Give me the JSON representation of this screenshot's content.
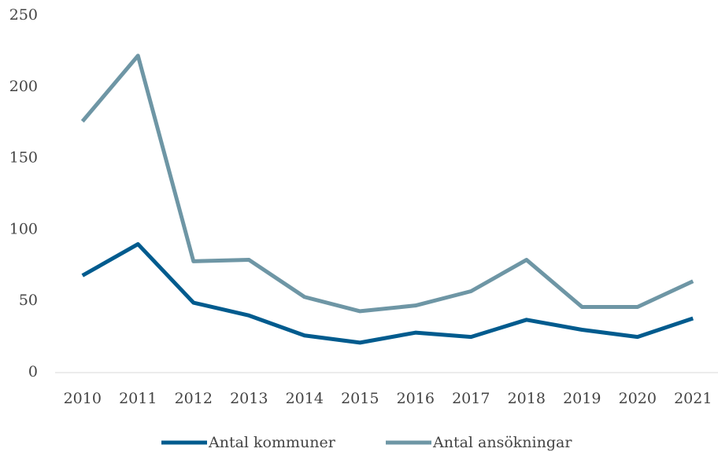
{
  "chart_data": {
    "type": "line",
    "categories": [
      "2010",
      "2011",
      "2012",
      "2013",
      "2014",
      "2015",
      "2016",
      "2017",
      "2018",
      "2019",
      "2020",
      "2021"
    ],
    "series": [
      {
        "name": "Antal kommuner",
        "color": "#005b8e",
        "values": [
          68,
          90,
          49,
          40,
          26,
          21,
          28,
          25,
          37,
          30,
          25,
          38
        ]
      },
      {
        "name": "Antal ansökningar",
        "color": "#6e96a5",
        "values": [
          176,
          222,
          78,
          79,
          53,
          43,
          47,
          57,
          79,
          46,
          46,
          64
        ]
      }
    ],
    "ylim": [
      0,
      250
    ],
    "yticks": [
      0,
      50,
      100,
      150,
      200,
      250
    ],
    "grid": false,
    "legend": "bottom"
  }
}
